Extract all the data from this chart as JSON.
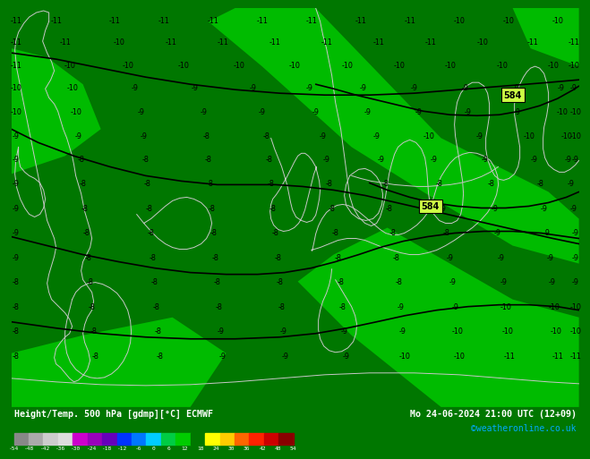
{
  "title_left": "Height/Temp. 500 hPa [gdmp][°C] ECMWF",
  "title_right": "Mo 24-06-2024 21:00 UTC (12+09)",
  "watermark": "©weatheronline.co.uk",
  "colorbar_values": [
    -54,
    -48,
    -42,
    -36,
    -30,
    -24,
    -18,
    -12,
    -6,
    0,
    6,
    12,
    18,
    24,
    30,
    36,
    42,
    48,
    54
  ],
  "bg_color_dark": "#007700",
  "bg_color_light": "#00bb00",
  "contour_color": "#000000",
  "coast_color": "#c8c8c8",
  "label_color": "#000000",
  "fig_width": 6.34,
  "fig_height": 4.9,
  "colorbar_colors": [
    "#888888",
    "#aaaaaa",
    "#cccccc",
    "#dddddd",
    "#cc00cc",
    "#9900bb",
    "#6600bb",
    "#0033ff",
    "#0077ff",
    "#00ccff",
    "#00cc44",
    "#00cc00",
    "#007700",
    "#ffff00",
    "#ffcc00",
    "#ff6600",
    "#ff2200",
    "#cc0000",
    "#880000"
  ]
}
